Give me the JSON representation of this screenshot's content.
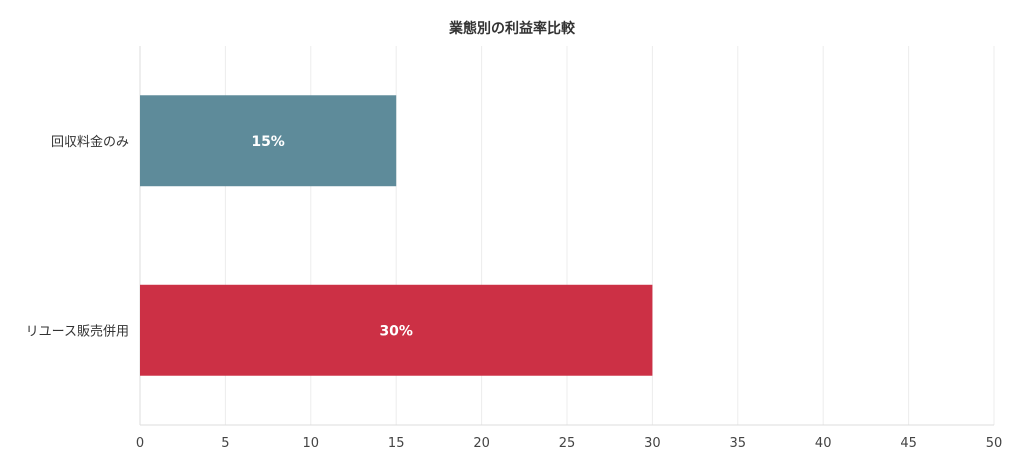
{
  "chart_data": {
    "type": "bar",
    "orientation": "horizontal",
    "title": "業態別の利益率比較",
    "categories": [
      "回収料金のみ",
      "リユース販売併用"
    ],
    "values": [
      15,
      30
    ],
    "data_labels": [
      "15%",
      "30%"
    ],
    "colors": [
      "#5e8b9a",
      "#cc3045"
    ],
    "xlim": [
      0,
      50
    ],
    "xticks": [
      0,
      5,
      10,
      15,
      20,
      25,
      30,
      35,
      40,
      45,
      50
    ],
    "xlabel": "",
    "ylabel": "",
    "grid": true,
    "legend": "none"
  }
}
